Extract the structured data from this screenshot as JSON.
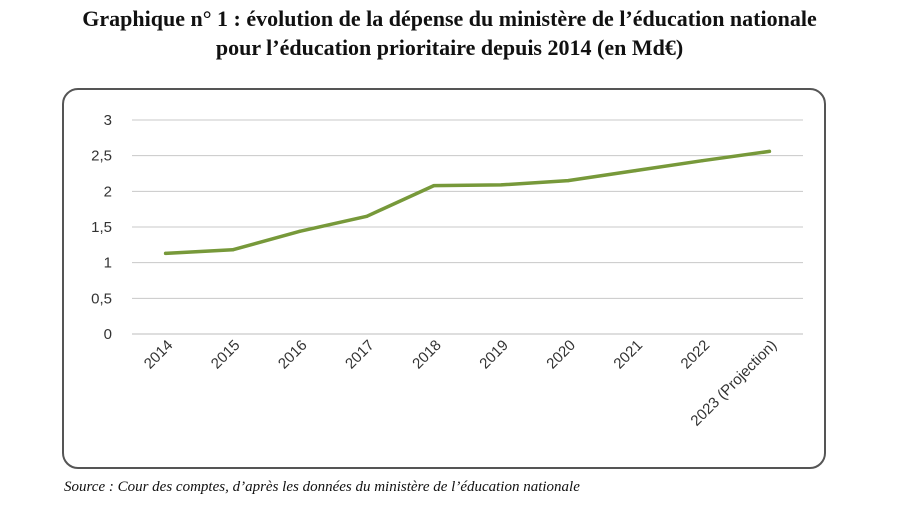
{
  "title_line1": "Graphique n° 1 : évolution de la dépense du ministère de l’éducation nationale",
  "title_line2": "pour l’éducation prioritaire depuis 2014 (en Md€)",
  "source": "Source : Cour des comptes, d’après les données du ministère de l’éducation nationale",
  "chart_data": {
    "type": "line",
    "categories": [
      "2014",
      "2015",
      "2016",
      "2017",
      "2018",
      "2019",
      "2020",
      "2021",
      "2022",
      "2023 (Projection)"
    ],
    "series": [
      {
        "values": [
          1.13,
          1.18,
          1.44,
          1.65,
          2.08,
          2.09,
          2.15,
          2.29,
          2.43,
          2.56
        ]
      }
    ],
    "yticks": [
      "0",
      "0,5",
      "1",
      "1,5",
      "2",
      "2,5",
      "3"
    ],
    "ylim": [
      0,
      3
    ],
    "grid": true,
    "line_color": "#77993a",
    "grid_color": "#c8c8c8"
  }
}
